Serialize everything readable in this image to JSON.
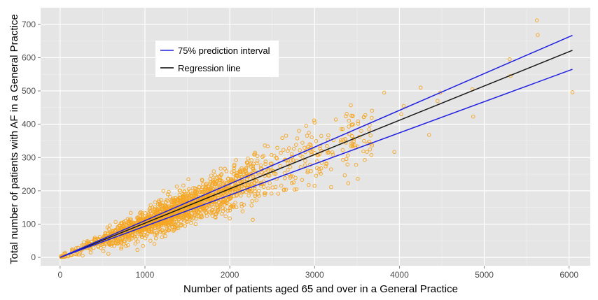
{
  "chart_data": {
    "type": "scatter",
    "title": "",
    "xlabel": "Number of patients aged 65 and over in a General Practice",
    "ylabel": "Total number of patients with AF in a General Practice",
    "xlim": [
      -230,
      6250
    ],
    "ylim": [
      -25,
      750
    ],
    "x_ticks": [
      0,
      1000,
      2000,
      3000,
      4000,
      5000,
      6000
    ],
    "y_ticks": [
      0,
      100,
      200,
      300,
      400,
      500,
      600,
      700
    ],
    "grid": true,
    "legend_position": "top-left",
    "legend": [
      {
        "label": "75% prediction interval",
        "color": "#2020e0"
      },
      {
        "label": "Regression line",
        "color": "#000000"
      }
    ],
    "colors": {
      "panel": "#e5e5e5",
      "grid": "#ffffff",
      "point_edge": "#f5a623",
      "prediction_interval": "#2020e0",
      "regression": "#1a1a1a"
    },
    "lines": [
      {
        "name": "Regression line",
        "x": [
          0,
          6040
        ],
        "y": [
          0,
          622
        ]
      },
      {
        "name": "75% prediction interval upper",
        "x": [
          0,
          6040
        ],
        "y": [
          0,
          667
        ]
      },
      {
        "name": "75% prediction interval lower",
        "x": [
          0,
          6040
        ],
        "y": [
          0,
          565
        ]
      }
    ],
    "highlighted_points": {
      "x": [
        3820,
        4020,
        4250,
        4350,
        4480,
        4860,
        4870,
        5300,
        5310,
        5620,
        5630,
        6040,
        3940,
        3550,
        3000,
        2900,
        3450,
        3650,
        4050,
        4450
      ],
      "y": [
        495,
        430,
        510,
        368,
        495,
        505,
        423,
        595,
        545,
        712,
        668,
        496,
        317,
        380,
        405,
        395,
        425,
        398,
        455,
        470
      ]
    },
    "point_cloud": {
      "n_points": 1800,
      "slope_per_1000": 102,
      "x_center": 1300,
      "x_max": 3700
    }
  }
}
